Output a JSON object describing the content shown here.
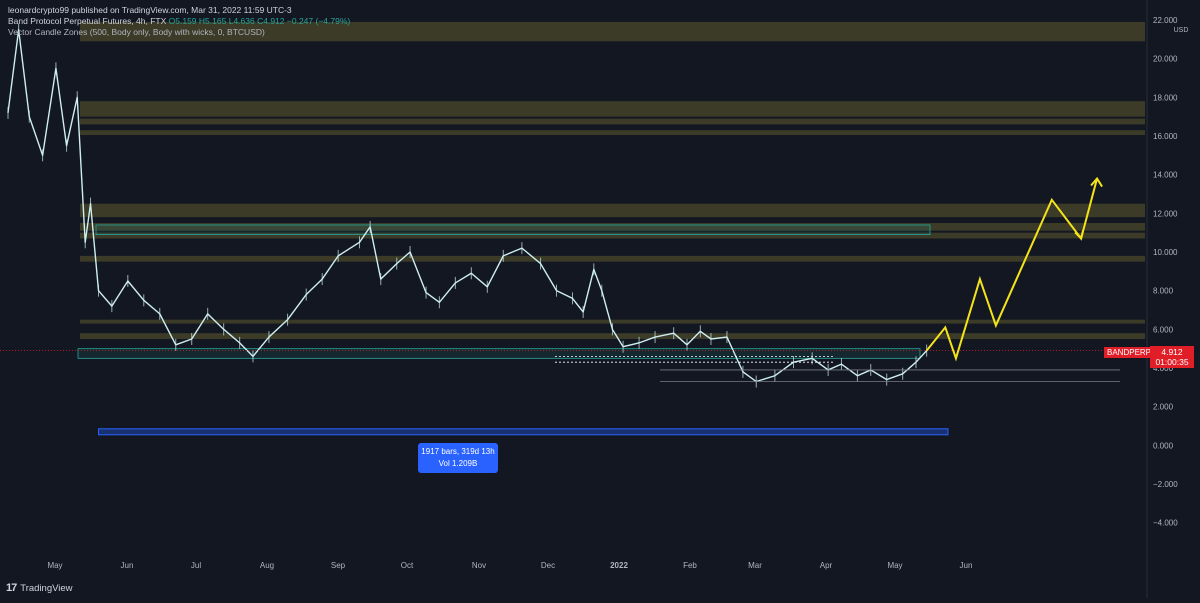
{
  "header": {
    "publisher": "leonardcrypto99 published on TradingView.com, Mar 31, 2022 11:59 UTC-3",
    "symbol": "Band Protocol Perpetual Futures, 4h, FTX",
    "ohlc": {
      "open": "O5.159",
      "high": "H5.165",
      "low": "L4.636",
      "close": "C4.912",
      "change": "−0.247 (−4.79%)"
    },
    "indicator": "Vector Candle Zones (500, Body only, Body with wicks, 0, BTCUSD)"
  },
  "price_tag": {
    "symbol": "BANDPERP",
    "price": "4.912",
    "countdown": "01:00:35"
  },
  "measure": {
    "bars": "1917 bars, 319d 13h",
    "vol": "Vol 1.209B"
  },
  "footer": {
    "brand": "TradingView",
    "logo": "17"
  },
  "colors": {
    "background": "#131722",
    "candles": "#cfeef0",
    "zone_fill": "#5c5a2e",
    "zone_teal": "#26a69a",
    "projection": "#f5e31a",
    "price_line": "#e01e28",
    "measure": "#2962ff"
  },
  "chart_data": {
    "type": "line",
    "title": "",
    "xlabel": "",
    "ylabel": "",
    "y_unit": "USD",
    "ylim": [
      -5,
      22
    ],
    "x_ticks": [
      "May",
      "Jun",
      "Jul",
      "Aug",
      "Sep",
      "Oct",
      "Nov",
      "Dec",
      "2022",
      "Feb",
      "Mar",
      "Apr",
      "May",
      "Jun"
    ],
    "y_ticks": [
      "22.000",
      "20.000",
      "18.000",
      "16.000",
      "14.000",
      "12.000",
      "10.000",
      "8.000",
      "6.000",
      "4.000",
      "2.000",
      "0.000",
      "−2.000",
      "−4.000"
    ],
    "grid": false,
    "series": [
      {
        "values": [
          [
            "2021-04-20",
            17.2
          ],
          [
            "2021-04-24",
            21.5
          ],
          [
            "2021-04-28",
            17.0
          ],
          [
            "2021-05-03",
            15.0
          ],
          [
            "2021-05-08",
            19.5
          ],
          [
            "2021-05-12",
            15.5
          ],
          [
            "2021-05-16",
            18.0
          ],
          [
            "2021-05-19",
            10.5
          ],
          [
            "2021-05-21",
            12.5
          ],
          [
            "2021-05-24",
            8.0
          ],
          [
            "2021-05-29",
            7.2
          ],
          [
            "2021-06-04",
            8.5
          ],
          [
            "2021-06-10",
            7.5
          ],
          [
            "2021-06-16",
            6.8
          ],
          [
            "2021-06-22",
            5.2
          ],
          [
            "2021-06-28",
            5.5
          ],
          [
            "2021-07-04",
            6.8
          ],
          [
            "2021-07-10",
            6.0
          ],
          [
            "2021-07-16",
            5.3
          ],
          [
            "2021-07-21",
            4.6
          ],
          [
            "2021-07-27",
            5.6
          ],
          [
            "2021-08-03",
            6.5
          ],
          [
            "2021-08-10",
            7.8
          ],
          [
            "2021-08-16",
            8.6
          ],
          [
            "2021-08-22",
            9.8
          ],
          [
            "2021-08-30",
            10.5
          ],
          [
            "2021-09-03",
            11.3
          ],
          [
            "2021-09-07",
            8.6
          ],
          [
            "2021-09-13",
            9.4
          ],
          [
            "2021-09-18",
            10.0
          ],
          [
            "2021-09-24",
            7.9
          ],
          [
            "2021-09-29",
            7.4
          ],
          [
            "2021-10-05",
            8.4
          ],
          [
            "2021-10-11",
            8.9
          ],
          [
            "2021-10-17",
            8.2
          ],
          [
            "2021-10-23",
            9.8
          ],
          [
            "2021-10-30",
            10.2
          ],
          [
            "2021-11-06",
            9.4
          ],
          [
            "2021-11-12",
            8.0
          ],
          [
            "2021-11-18",
            7.6
          ],
          [
            "2021-11-22",
            6.9
          ],
          [
            "2021-11-26",
            9.1
          ],
          [
            "2021-11-29",
            8.0
          ],
          [
            "2021-12-03",
            6.0
          ],
          [
            "2021-12-07",
            5.1
          ],
          [
            "2021-12-13",
            5.3
          ],
          [
            "2021-12-19",
            5.6
          ],
          [
            "2021-12-26",
            5.8
          ],
          [
            "2021-12-31",
            5.2
          ],
          [
            "2022-01-05",
            5.9
          ],
          [
            "2022-01-09",
            5.5
          ],
          [
            "2022-01-15",
            5.6
          ],
          [
            "2022-01-21",
            3.8
          ],
          [
            "2022-01-26",
            3.3
          ],
          [
            "2022-02-02",
            3.6
          ],
          [
            "2022-02-09",
            4.3
          ],
          [
            "2022-02-16",
            4.5
          ],
          [
            "2022-02-22",
            3.9
          ],
          [
            "2022-02-27",
            4.2
          ],
          [
            "2022-03-05",
            3.6
          ],
          [
            "2022-03-10",
            3.9
          ],
          [
            "2022-03-16",
            3.4
          ],
          [
            "2022-03-22",
            3.7
          ],
          [
            "2022-03-27",
            4.3
          ],
          [
            "2022-03-31",
            4.9
          ]
        ]
      },
      {
        "values": [
          [
            "2022-03-31",
            4.9
          ],
          [
            "2022-04-07",
            6.1
          ],
          [
            "2022-04-11",
            4.5
          ],
          [
            "2022-04-20",
            8.6
          ],
          [
            "2022-04-26",
            6.2
          ],
          [
            "2022-05-17",
            12.7
          ],
          [
            "2022-05-28",
            10.7
          ],
          [
            "2022-06-03",
            13.8
          ]
        ]
      }
    ],
    "zones": [
      [
        20.9,
        21.9
      ],
      [
        17.0,
        17.8
      ],
      [
        16.6,
        16.9
      ],
      [
        16.05,
        16.3
      ],
      [
        11.8,
        12.5
      ],
      [
        11.1,
        11.5
      ],
      [
        10.7,
        11.0
      ],
      [
        9.5,
        9.8
      ],
      [
        6.3,
        6.5
      ],
      [
        5.5,
        5.8
      ]
    ],
    "teal_zones": [
      [
        4.5,
        5.0
      ],
      [
        10.9,
        11.4
      ]
    ],
    "markers": {
      "last_price": 4.912,
      "support_lines": [
        4.6,
        4.3,
        3.9,
        3.3
      ],
      "measure_from": "2021-05-24",
      "measure_to": "2022-04-08",
      "measure_level": 0.7
    }
  }
}
